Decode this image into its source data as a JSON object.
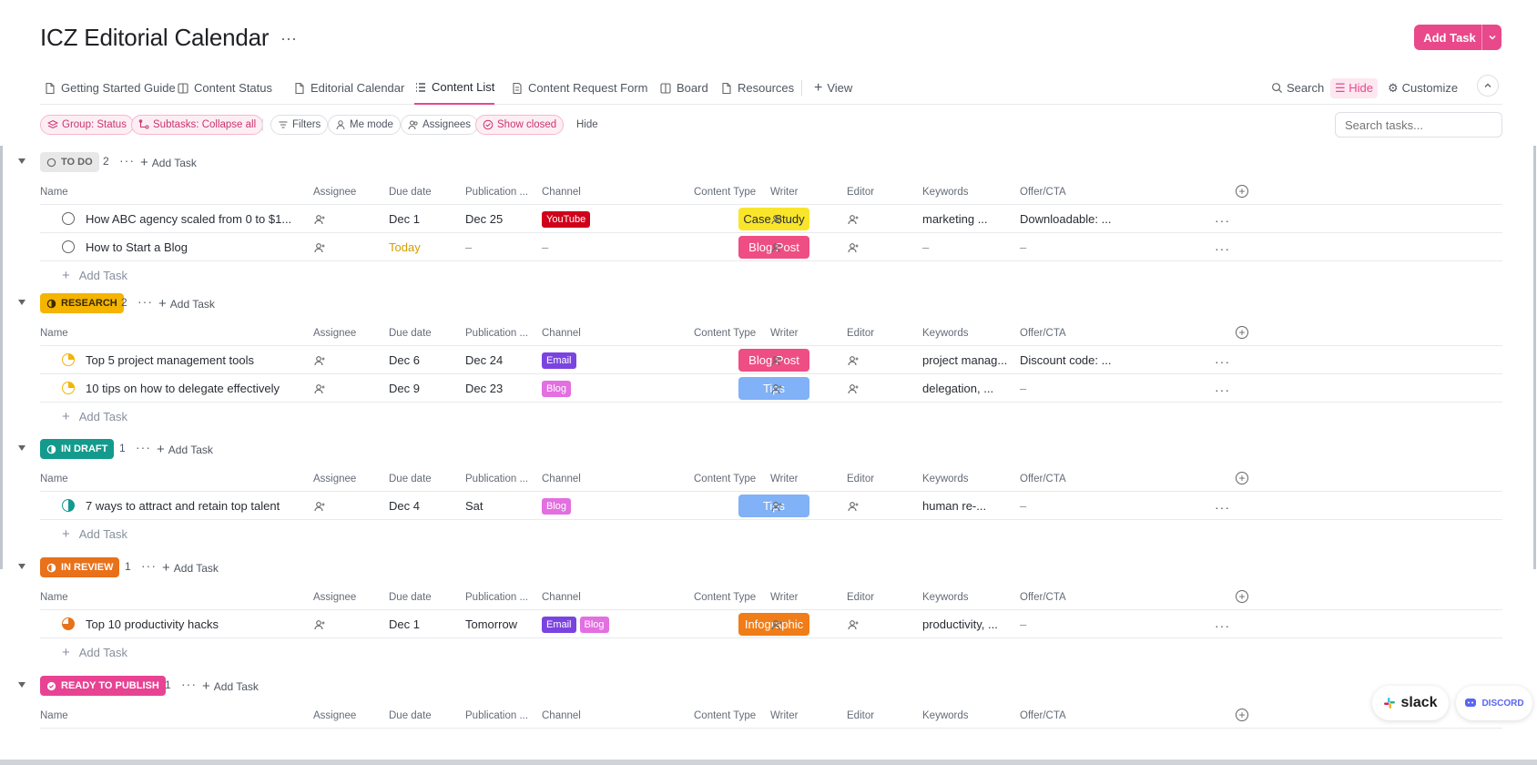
{
  "header": {
    "title": "ICZ Editorial Calendar",
    "title_menu": "···",
    "add_task_label": "Add Task"
  },
  "views": {
    "items": [
      {
        "label": "Getting Started Guide",
        "icon": "doc-icon"
      },
      {
        "label": "Content Status",
        "icon": "board-icon"
      },
      {
        "label": "Editorial Calendar",
        "icon": "doc-icon"
      },
      {
        "label": "Content List",
        "icon": "list-icon",
        "active": true
      },
      {
        "label": "Content Request Form",
        "icon": "form-icon"
      },
      {
        "label": "Board",
        "icon": "board-icon"
      },
      {
        "label": "Resources",
        "icon": "doc-icon"
      }
    ],
    "add_view_label": "View",
    "search_label": "Search",
    "hide_label": "Hide",
    "customize_label": "Customize"
  },
  "filters": {
    "group_label": "Group: Status",
    "subtasks_label": "Subtasks: Collapse all",
    "filters_label": "Filters",
    "me_mode_label": "Me mode",
    "assignees_label": "Assignees",
    "show_closed_label": "Show closed",
    "hide_label": "Hide",
    "search_placeholder": "Search tasks..."
  },
  "columns": {
    "name": "Name",
    "assignee": "Assignee",
    "due_date": "Due date",
    "publication": "Publication ...",
    "channel": "Channel",
    "content_type": "Content Type",
    "writer": "Writer",
    "editor": "Editor",
    "keywords": "Keywords",
    "offer": "Offer/CTA"
  },
  "add_task_label": "Add Task",
  "colors": {
    "accent": "#e9488a",
    "todo": "#e8e8e8",
    "research": "#f4b400",
    "in_draft": "#139a8d",
    "in_review": "#e8711a",
    "ready": "#e84393",
    "youtube": "#d0021b",
    "email": "#7b43e0",
    "blog": "#e36fe0",
    "case_study": "#f9e52a",
    "blog_post": "#ee4e83",
    "tips": "#81b1f6",
    "infographic": "#f07d17"
  },
  "groups": [
    {
      "status": "TO DO",
      "count": "2",
      "tasks": [
        {
          "name": "How ABC agency scaled from 0 to $1...",
          "due": "Dec 1",
          "publication": "Dec 25",
          "channels": [
            "YouTube"
          ],
          "content_type": "Case Study",
          "keywords": "marketing ...",
          "offer": "Downloadable: ..."
        },
        {
          "name": "How to Start a Blog",
          "due": "Today",
          "publication": "–",
          "channels_empty": "–",
          "content_type": "Blog Post",
          "keywords": "–",
          "offer": "–"
        }
      ]
    },
    {
      "status": "RESEARCH",
      "count": "2",
      "tasks": [
        {
          "name": "Top 5 project management tools",
          "due": "Dec 6",
          "publication": "Dec 24",
          "channels": [
            "Email"
          ],
          "content_type": "Blog Post",
          "keywords": "project manag...",
          "offer": "Discount code: ..."
        },
        {
          "name": "10 tips on how to delegate effectively",
          "due": "Dec 9",
          "publication": "Dec 23",
          "channels": [
            "Blog"
          ],
          "content_type": "Tips",
          "keywords": "delegation, ...",
          "offer": "–"
        }
      ]
    },
    {
      "status": "IN DRAFT",
      "count": "1",
      "tasks": [
        {
          "name": "7 ways to attract and retain top talent",
          "due": "Dec 4",
          "publication": "Sat",
          "channels": [
            "Blog"
          ],
          "content_type": "Tips",
          "keywords": "human re-...",
          "offer": "–"
        }
      ]
    },
    {
      "status": "IN REVIEW",
      "count": "1",
      "tasks": [
        {
          "name": "Top 10 productivity hacks",
          "due": "Dec 1",
          "publication": "Tomorrow",
          "channels": [
            "Email",
            "Blog"
          ],
          "content_type": "Infographic",
          "keywords": "productivity, ...",
          "offer": "–"
        }
      ]
    },
    {
      "status": "READY TO PUBLISH",
      "count": "1",
      "tasks": []
    }
  ],
  "integrations": {
    "slack": "slack",
    "discord": "DISCORD"
  }
}
